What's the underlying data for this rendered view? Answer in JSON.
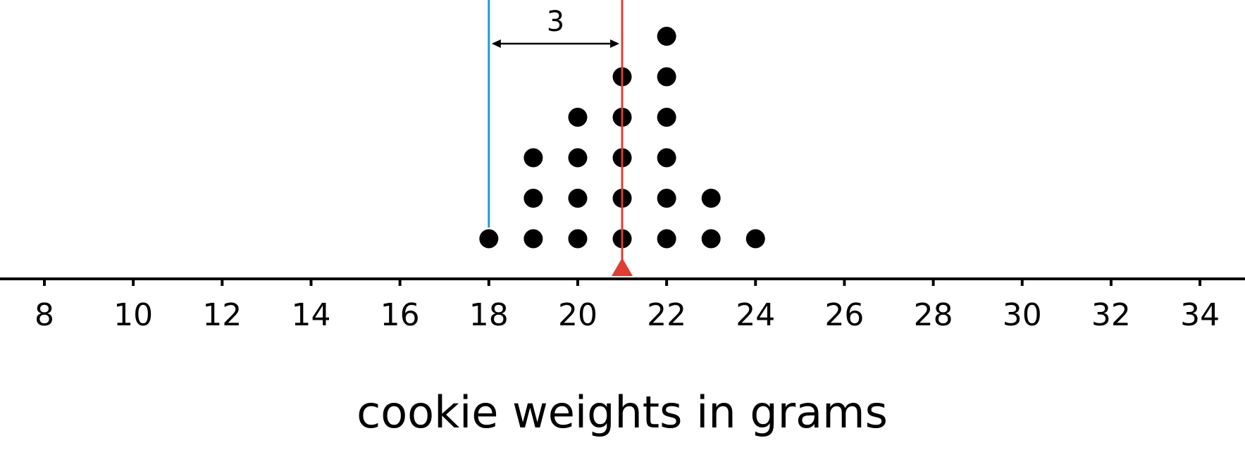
{
  "chart_data": {
    "type": "dot plot",
    "xlabel": "cookie weights in grams",
    "xlim": [
      7,
      35
    ],
    "xticks": [
      8,
      10,
      12,
      14,
      16,
      18,
      20,
      22,
      24,
      26,
      28,
      30,
      32,
      34
    ],
    "tick_labels": [
      "8",
      "10",
      "12",
      "14",
      "16",
      "18",
      "20",
      "22",
      "24",
      "26",
      "28",
      "30",
      "32",
      "34"
    ],
    "points": [
      {
        "x": 18,
        "count": 1
      },
      {
        "x": 19,
        "count": 3
      },
      {
        "x": 20,
        "count": 4
      },
      {
        "x": 21,
        "count": 5
      },
      {
        "x": 22,
        "count": 6
      },
      {
        "x": 23,
        "count": 2
      },
      {
        "x": 24,
        "count": 1
      }
    ],
    "mean_line": {
      "x": 21,
      "color": "#e03c31",
      "marker": "triangle"
    },
    "reference_line": {
      "x": 18,
      "color": "#1a9ad6"
    },
    "distance_annotation": {
      "from": 18,
      "to": 21,
      "label": "3"
    },
    "grid": false,
    "dot_color": "#000000"
  }
}
